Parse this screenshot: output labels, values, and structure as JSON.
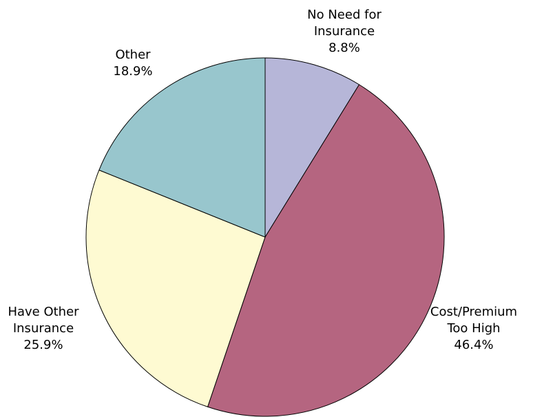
{
  "chart_data": {
    "type": "pie",
    "title": "",
    "start_angle_deg": 0,
    "direction": "clockwise",
    "slices": [
      {
        "label": "No Need for Insurance",
        "label_lines": [
          "No Need for",
          "Insurance",
          "8.8%"
        ],
        "value": 8.8,
        "color": "#B6B6D8"
      },
      {
        "label": "Cost/Premium Too High",
        "label_lines": [
          "Cost/Premium",
          "Too High",
          "46.4%"
        ],
        "value": 46.4,
        "color": "#B56580"
      },
      {
        "label": "Have Other Insurance",
        "label_lines": [
          "Have Other",
          "Insurance",
          "25.9%"
        ],
        "value": 25.9,
        "color": "#FEFAD2"
      },
      {
        "label": "Other",
        "label_lines": [
          "Other",
          "18.9%"
        ],
        "value": 18.9,
        "color": "#98C6CD"
      }
    ]
  }
}
